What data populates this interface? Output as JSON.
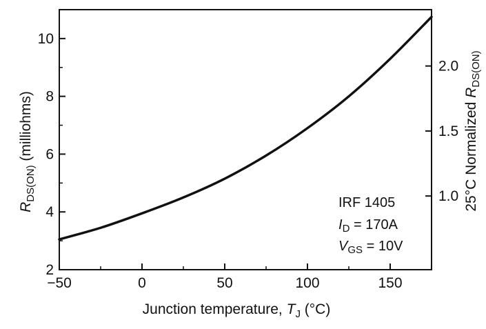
{
  "chart_data": {
    "type": "line",
    "x_axis": {
      "label_main": "Junction temperature, ",
      "label_symbol": "T",
      "label_sub": "J",
      "label_unit": " (°C)",
      "range": [
        -50,
        175
      ],
      "ticks": [
        -50,
        0,
        50,
        100,
        150
      ],
      "tick_labels": [
        "−50",
        "0",
        "50",
        "100",
        "150"
      ]
    },
    "y_axis_left": {
      "label_symbol": "R",
      "label_sub": "DS(ON)",
      "label_unit": "  (milliohms)",
      "range": [
        2,
        11
      ],
      "ticks": [
        2,
        4,
        6,
        8,
        10
      ],
      "tick_labels": [
        "2",
        "4",
        "6",
        "8",
        "10"
      ]
    },
    "y_axis_right": {
      "label_main": "25°C Normalized ",
      "label_symbol": "R",
      "label_sub": "DS(ON)",
      "ticks": [
        1.0,
        1.5,
        2.0
      ],
      "tick_labels": [
        "1.0",
        "1.5",
        "2.0"
      ],
      "tick_left_values": [
        4.55,
        6.8,
        9.05
      ]
    },
    "series": [
      {
        "x": [
          -50,
          -25,
          0,
          25,
          50,
          75,
          100,
          125,
          150,
          175
        ],
        "y": [
          3.05,
          3.45,
          3.95,
          4.5,
          5.15,
          5.95,
          6.9,
          8.0,
          9.3,
          10.75
        ]
      }
    ],
    "annotation": {
      "line1": "IRF 1405",
      "line2_symbol": "I",
      "line2_sub": "D",
      "line2_value": " = 170A",
      "line3_symbol": "V",
      "line3_sub": "GS",
      "line3_value": " = 10V"
    },
    "grid": false,
    "colors": {
      "line": "#111111",
      "axis": "#111111"
    }
  }
}
